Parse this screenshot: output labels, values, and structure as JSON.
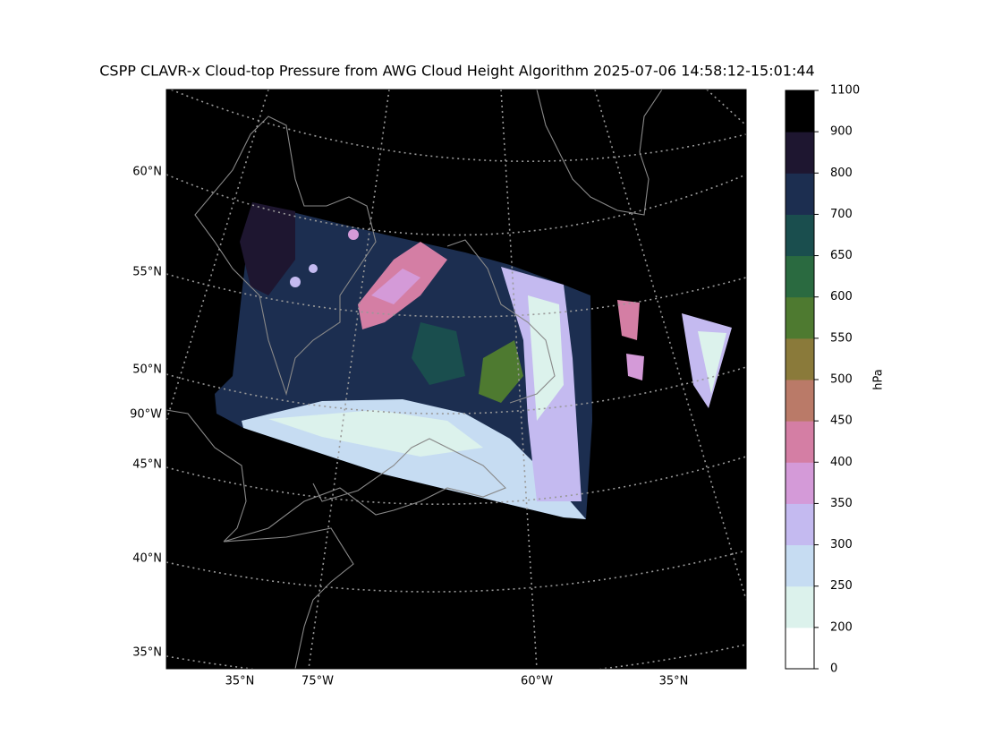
{
  "title": "CSPP CLAVR-x Cloud-top Pressure from AWG Cloud Height Algorithm 2025-07-06 14:58:12-15:01:44",
  "left_labels": [
    "60°N",
    "55°N",
    "50°N",
    "90°W",
    "45°N",
    "40°N",
    "35°N"
  ],
  "bottom_labels": [
    "35°N",
    "75°W",
    "60°W",
    "35°N"
  ],
  "colorbar": {
    "label": "hPa",
    "bounds": [
      0,
      200,
      250,
      300,
      350,
      400,
      450,
      500,
      550,
      600,
      650,
      700,
      800,
      900,
      1100
    ],
    "colors": [
      "#ffffff",
      "#dcf2ec",
      "#c6dcf2",
      "#c4baf0",
      "#d49ad8",
      "#d47ea4",
      "#ba7a68",
      "#8a7a3a",
      "#4e7a30",
      "#2a6a40",
      "#1a4e4e",
      "#1c2e50",
      "#1e1630",
      "#000000"
    ]
  }
}
